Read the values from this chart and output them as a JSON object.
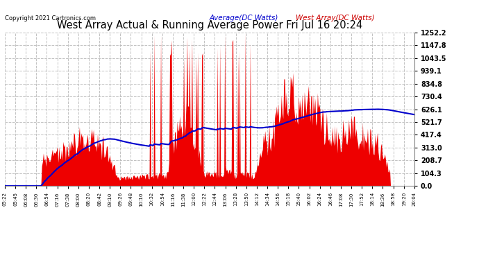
{
  "title": "West Array Actual & Running Average Power Fri Jul 16 20:24",
  "copyright": "Copyright 2021 Cartronics.com",
  "legend_avg": "Average(DC Watts)",
  "legend_west": "West Array(DC Watts)",
  "ymax": 1252.2,
  "ymin": 0.0,
  "yticks": [
    0.0,
    104.3,
    208.7,
    313.0,
    417.4,
    521.7,
    626.1,
    730.4,
    834.8,
    939.1,
    1043.5,
    1147.8,
    1252.2
  ],
  "background_color": "#ffffff",
  "grid_color": "#bbbbbb",
  "fill_color": "#ee0000",
  "avg_line_color": "#0000cc",
  "title_color": "#000000",
  "copyright_color": "#000000",
  "avg_legend_color": "#0000cc",
  "west_legend_color": "#cc0000",
  "xtick_labels": [
    "05:22",
    "05:45",
    "06:08",
    "06:30",
    "06:54",
    "07:16",
    "07:38",
    "08:00",
    "08:20",
    "08:42",
    "09:10",
    "09:26",
    "09:48",
    "10:10",
    "10:32",
    "10:54",
    "11:16",
    "11:38",
    "12:00",
    "12:22",
    "12:44",
    "13:06",
    "13:28",
    "13:50",
    "14:12",
    "14:34",
    "14:56",
    "15:18",
    "15:40",
    "16:02",
    "16:24",
    "16:46",
    "17:08",
    "17:30",
    "17:52",
    "18:14",
    "18:36",
    "18:58",
    "19:20",
    "20:04"
  ],
  "num_points": 500
}
